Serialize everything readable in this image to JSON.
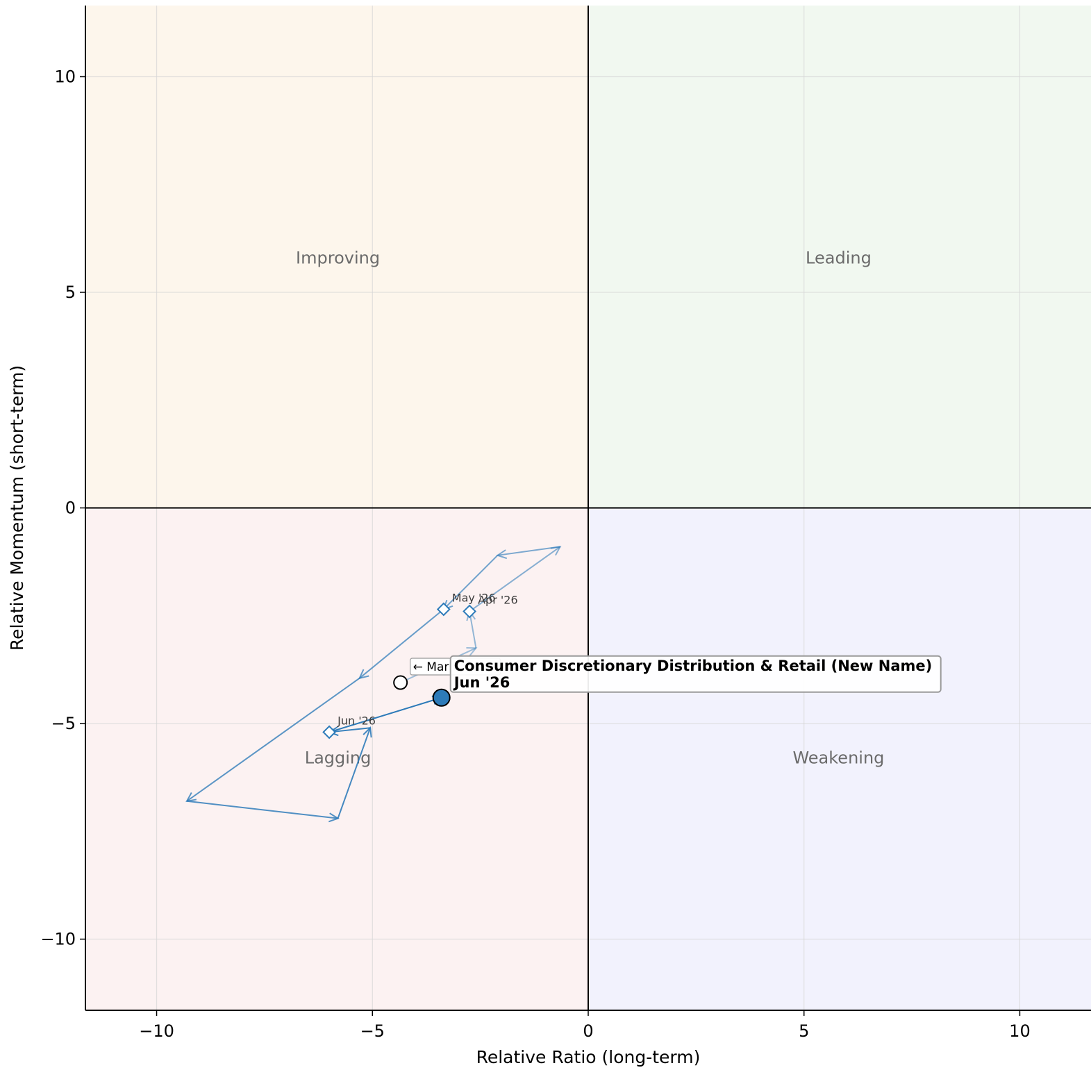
{
  "chart_data": {
    "type": "scatter",
    "subtype": "relative-rotation-graph",
    "title": "",
    "xlabel": "Relative Ratio (long-term)",
    "ylabel": "Relative Momentum (short-term)",
    "xlim": [
      -11.65,
      11.65
    ],
    "ylim": [
      -11.65,
      11.65
    ],
    "xticks": [
      -10,
      -5,
      0,
      5,
      10
    ],
    "yticks": [
      -10,
      -5,
      0,
      5,
      10
    ],
    "grid": true,
    "quadrants": [
      {
        "name": "Improving",
        "color": "#fdf6ec",
        "label_x": -5.8,
        "label_y": 5.8
      },
      {
        "name": "Leading",
        "color": "#f1f8f0",
        "label_x": 5.8,
        "label_y": 5.8
      },
      {
        "name": "Lagging",
        "color": "#fcf2f2",
        "label_x": -5.8,
        "label_y": -5.8
      },
      {
        "name": "Weakening",
        "color": "#f2f2fd",
        "label_x": 5.8,
        "label_y": -5.8
      }
    ],
    "series": [
      {
        "name": "Consumer Discretionary Distribution & Retail (New Name)",
        "color": "#2d7bb9",
        "trail": [
          {
            "x": -4.35,
            "y": -4.05,
            "label": "← Mar"
          },
          {
            "x": -2.6,
            "y": -3.25,
            "label": ""
          },
          {
            "x": -2.75,
            "y": -2.4,
            "label": "Apr '26"
          },
          {
            "x": -0.65,
            "y": -0.9,
            "label": ""
          },
          {
            "x": -2.1,
            "y": -1.1,
            "label": ""
          },
          {
            "x": -3.35,
            "y": -2.35,
            "label": "May '26"
          },
          {
            "x": -5.3,
            "y": -3.95,
            "label": ""
          },
          {
            "x": -9.3,
            "y": -6.8,
            "label": ""
          },
          {
            "x": -5.8,
            "y": -7.2,
            "label": ""
          },
          {
            "x": -5.05,
            "y": -5.1,
            "label": ""
          },
          {
            "x": -6.0,
            "y": -5.2,
            "label": "Jun '26"
          },
          {
            "x": -3.4,
            "y": -4.4,
            "label": ""
          }
        ],
        "current": {
          "x": -3.4,
          "y": -4.4
        },
        "annotation": [
          "Consumer Discretionary Distribution & Retail (New Name)",
          "Jun '26"
        ]
      }
    ]
  }
}
